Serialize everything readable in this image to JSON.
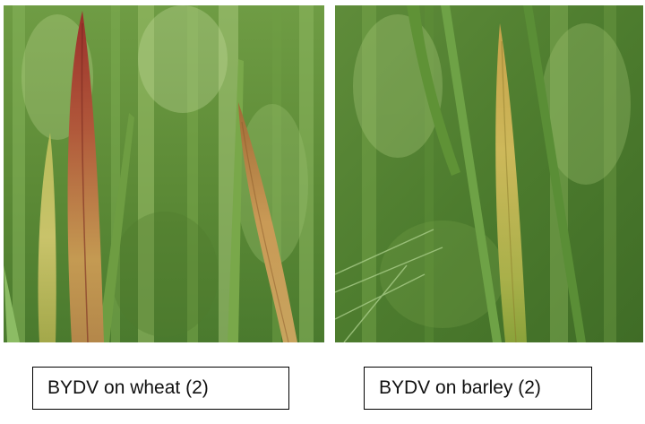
{
  "panels": [
    {
      "caption": "BYDV on wheat (2)",
      "crop": "wheat",
      "leaf_colors": [
        "#c9b24a",
        "#8e3a2c",
        "#b28a3a"
      ]
    },
    {
      "caption": "BYDV on barley (2)",
      "crop": "barley",
      "leaf_colors": [
        "#c8b454",
        "#8aa43a"
      ]
    }
  ],
  "colors": {
    "background_green": "#5f8f3a",
    "caption_border": "#000000"
  }
}
